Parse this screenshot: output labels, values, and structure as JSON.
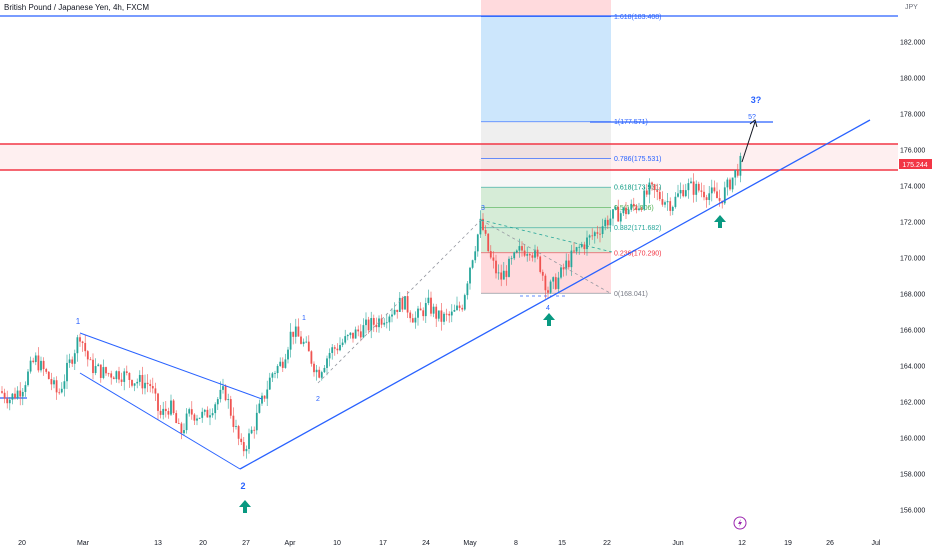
{
  "header": {
    "title": "British Pound / Japanese Yen, 4h, FXCM",
    "currency": "JPY"
  },
  "colors": {
    "bull": "#26a69a",
    "bear": "#ef5350",
    "trendline": "#2962ff",
    "resistance": "#f23645",
    "fib_blue_zone": "#bbdefb",
    "fib_red_zone": "#ffcdd2",
    "fib_green_zone": "#c8e6c9",
    "price_badge": "#f23645",
    "arrow_green": "#089981"
  },
  "price_axis": {
    "labels": [
      "182.000",
      "180.000",
      "178.000",
      "176.000",
      "174.000",
      "172.000",
      "170.000",
      "168.000",
      "166.000",
      "164.000",
      "162.000",
      "160.000",
      "158.000",
      "156.000"
    ],
    "current_price": "175.244"
  },
  "time_axis": {
    "labels": [
      "20",
      "Mar",
      "13",
      "20",
      "27",
      "Apr",
      "10",
      "17",
      "24",
      "May",
      "8",
      "15",
      "22",
      "Jun",
      "12",
      "19",
      "26",
      "Jul"
    ]
  },
  "fib_levels": [
    {
      "label": "1.618(183.408)",
      "price": 183.408
    },
    {
      "label": "1(177.571)",
      "price": 177.571
    },
    {
      "label": "0.786(175.531)",
      "price": 175.531
    },
    {
      "label": "0.618(173.931)",
      "price": 173.931
    },
    {
      "label": "0.5(172.806)",
      "price": 172.806
    },
    {
      "label": "0.382(171.682)",
      "price": 171.682
    },
    {
      "label": "0.236(170.290)",
      "price": 170.29
    },
    {
      "label": "0(168.041)",
      "price": 168.041
    }
  ],
  "wave_labels": {
    "w1_major": "1",
    "w2_major": "2",
    "w1_minor": "1",
    "w2_minor": "2",
    "w3_minor": "3",
    "w4_minor": "4",
    "w5_minor": "5?",
    "w3_major": "3?"
  },
  "icons": {
    "events": "lightning-icon",
    "arrows": "up-arrow-icon"
  }
}
